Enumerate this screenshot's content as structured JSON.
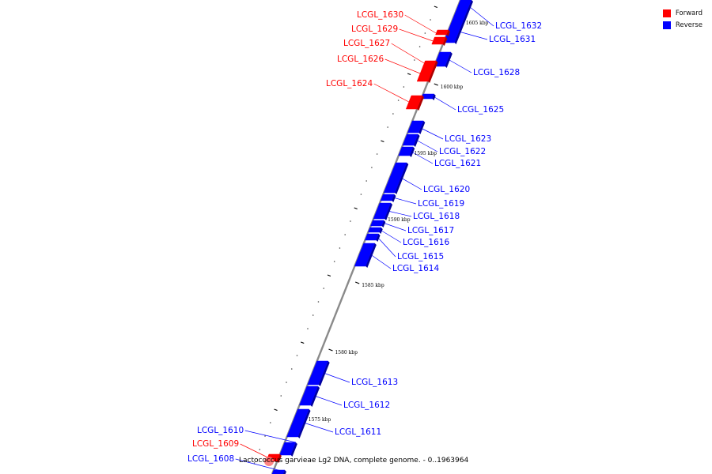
{
  "colors": {
    "forward": "#ff0000",
    "reverse": "#0000ff",
    "backbone": "#8a8a8a"
  },
  "legend": [
    {
      "label": "Forward",
      "color": "#ff0000"
    },
    {
      "label": "Reverse",
      "color": "#0000ff"
    }
  ],
  "caption": "Lactococcus garvieae Lg2 DNA, complete genome. - 0..1963964",
  "scale_labels": [
    "1605 kbp",
    "1600 kbp",
    "1595 kbp",
    "1590 kbp",
    "1585 kbp",
    "1580 kbp",
    "1575 kbp"
  ],
  "genes": [
    {
      "name": "LCGL_1632",
      "strand": "reverse"
    },
    {
      "name": "LCGL_1631",
      "strand": "reverse"
    },
    {
      "name": "LCGL_1630",
      "strand": "forward"
    },
    {
      "name": "LCGL_1629",
      "strand": "forward"
    },
    {
      "name": "LCGL_1628",
      "strand": "reverse"
    },
    {
      "name": "LCGL_1627",
      "strand": "forward"
    },
    {
      "name": "LCGL_1626",
      "strand": "forward"
    },
    {
      "name": "LCGL_1625",
      "strand": "reverse"
    },
    {
      "name": "LCGL_1624",
      "strand": "forward"
    },
    {
      "name": "LCGL_1623",
      "strand": "reverse"
    },
    {
      "name": "LCGL_1622",
      "strand": "reverse"
    },
    {
      "name": "LCGL_1621",
      "strand": "reverse"
    },
    {
      "name": "LCGL_1620",
      "strand": "reverse"
    },
    {
      "name": "LCGL_1619",
      "strand": "reverse"
    },
    {
      "name": "LCGL_1618",
      "strand": "reverse"
    },
    {
      "name": "LCGL_1617",
      "strand": "reverse"
    },
    {
      "name": "LCGL_1616",
      "strand": "reverse"
    },
    {
      "name": "LCGL_1615",
      "strand": "reverse"
    },
    {
      "name": "LCGL_1614",
      "strand": "reverse"
    },
    {
      "name": "LCGL_1613",
      "strand": "reverse"
    },
    {
      "name": "LCGL_1612",
      "strand": "reverse"
    },
    {
      "name": "LCGL_1611",
      "strand": "reverse"
    },
    {
      "name": "LCGL_1610",
      "strand": "reverse"
    },
    {
      "name": "LCGL_1609",
      "strand": "forward"
    },
    {
      "name": "LCGL_1608",
      "strand": "reverse"
    }
  ]
}
